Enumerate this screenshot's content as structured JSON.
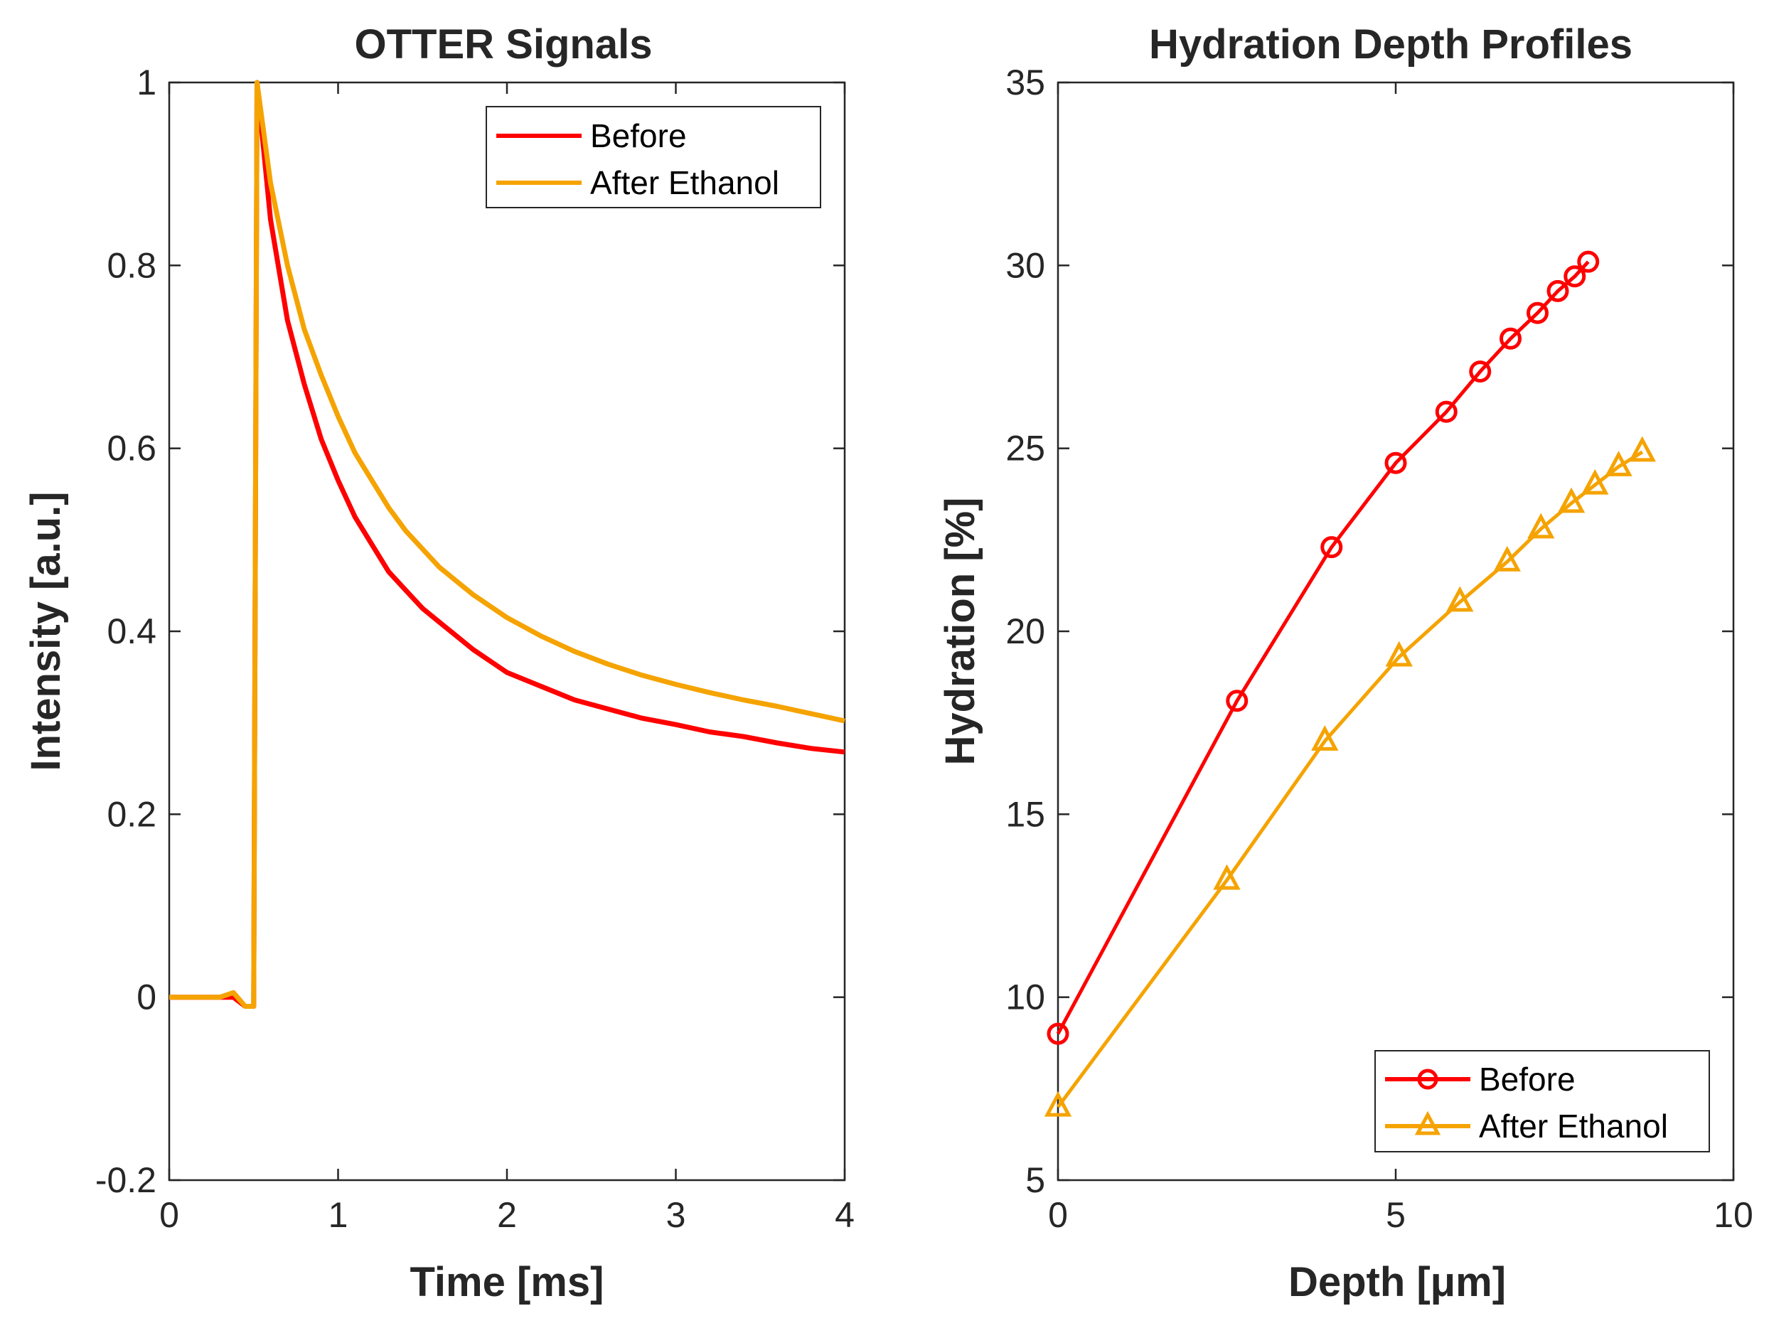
{
  "chart_data": [
    {
      "type": "line",
      "title": "OTTER Signals",
      "xlabel": "Time [ms]",
      "ylabel": "Intensity [a.u.]",
      "xlim": [
        0,
        4
      ],
      "ylim": [
        -0.2,
        1
      ],
      "xticks": [
        0,
        1,
        2,
        3,
        4
      ],
      "xtick_labels": [
        "0",
        "1",
        "2",
        "3",
        "4"
      ],
      "yticks": [
        -0.2,
        0,
        0.2,
        0.4,
        0.6,
        0.8,
        1
      ],
      "ytick_labels": [
        "-0.2",
        "0",
        "0.2",
        "0.4",
        "0.6",
        "0.8",
        "1"
      ],
      "grid": false,
      "legend_position": "top-right",
      "series": [
        {
          "name": "Before",
          "color": "#ff0000",
          "x": [
            0,
            0.1,
            0.2,
            0.3,
            0.38,
            0.45,
            0.5,
            0.52,
            0.6,
            0.7,
            0.8,
            0.9,
            1.0,
            1.1,
            1.2,
            1.3,
            1.4,
            1.5,
            1.6,
            1.8,
            2.0,
            2.2,
            2.4,
            2.6,
            2.8,
            3.0,
            3.2,
            3.4,
            3.6,
            3.8,
            4.0
          ],
          "values": [
            0.0,
            0.0,
            0.0,
            0.0,
            0.0,
            -0.01,
            -0.01,
            1.0,
            0.85,
            0.74,
            0.67,
            0.61,
            0.565,
            0.525,
            0.495,
            0.465,
            0.445,
            0.425,
            0.41,
            0.38,
            0.355,
            0.34,
            0.325,
            0.315,
            0.305,
            0.298,
            0.29,
            0.285,
            0.278,
            0.272,
            0.268
          ]
        },
        {
          "name": "After Ethanol",
          "color": "#f5a300",
          "x": [
            0,
            0.1,
            0.2,
            0.3,
            0.38,
            0.45,
            0.5,
            0.52,
            0.6,
            0.7,
            0.8,
            0.9,
            1.0,
            1.1,
            1.2,
            1.3,
            1.4,
            1.5,
            1.6,
            1.8,
            2.0,
            2.2,
            2.4,
            2.6,
            2.8,
            3.0,
            3.2,
            3.4,
            3.6,
            3.8,
            4.0
          ],
          "values": [
            0.0,
            0.0,
            0.0,
            0.0,
            0.005,
            -0.01,
            -0.01,
            1.0,
            0.89,
            0.8,
            0.73,
            0.68,
            0.635,
            0.595,
            0.565,
            0.535,
            0.51,
            0.49,
            0.47,
            0.44,
            0.415,
            0.395,
            0.378,
            0.364,
            0.352,
            0.342,
            0.333,
            0.325,
            0.318,
            0.31,
            0.302
          ]
        }
      ]
    },
    {
      "type": "line",
      "title": "Hydration Depth Profiles",
      "xlabel": "Depth  [μm]",
      "ylabel": "Hydration [%]",
      "xlim": [
        0,
        10
      ],
      "ylim": [
        5,
        35
      ],
      "xticks": [
        0,
        5,
        10
      ],
      "xtick_labels": [
        "0",
        "5",
        "10"
      ],
      "yticks": [
        5,
        10,
        15,
        20,
        25,
        30,
        35
      ],
      "ytick_labels": [
        "5",
        "10",
        "15",
        "20",
        "25",
        "30",
        "35"
      ],
      "grid": false,
      "legend_position": "bottom-right",
      "series": [
        {
          "name": "Before",
          "color": "#ff0000",
          "marker": "circle",
          "x": [
            0,
            2.65,
            4.05,
            5.0,
            5.75,
            6.25,
            6.7,
            7.1,
            7.4,
            7.65,
            7.85
          ],
          "values": [
            9.0,
            18.1,
            22.3,
            24.6,
            26.0,
            27.1,
            28.0,
            28.7,
            29.3,
            29.7,
            30.1
          ]
        },
        {
          "name": "After Ethanol",
          "color": "#f5a300",
          "marker": "triangle",
          "x": [
            0,
            2.5,
            3.95,
            5.05,
            5.95,
            6.65,
            7.15,
            7.6,
            7.95,
            8.3,
            8.65
          ],
          "values": [
            7.0,
            13.2,
            17.0,
            19.3,
            20.8,
            21.9,
            22.8,
            23.5,
            24.0,
            24.5,
            24.9
          ]
        }
      ]
    }
  ]
}
